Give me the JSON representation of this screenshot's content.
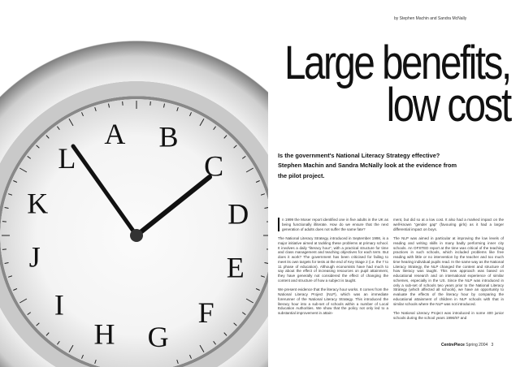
{
  "byline": "by Stephen Machin and Sandra McNally",
  "title": {
    "line1": "Large benefits,",
    "line2": "low cost"
  },
  "standfirst": "Is the government's National Literacy Strategy effective? Stephen Machin and Sandra McNally look at the evidence from the pilot project.",
  "clock": {
    "letters": [
      "A",
      "B",
      "C",
      "D",
      "E",
      "F",
      "G",
      "H",
      "I",
      "J",
      "K",
      "L"
    ]
  },
  "column1": [
    "n 1999 the Moser report identified one in five adults in the UK as being functionally illiterate. How do we ensure that the next generation of adults does not suffer the same fate?",
    "The National Literacy Strategy, introduced in September 1998, is a major initiative aimed at tackling these problems at primary school. It involves a daily “literacy hour”, with a practical structure for time and class management and teaching objectives for each term. But does it work? The government has been criticised for failing to meet its own targets for tests at the end of Key Stage 2 (i.e. the 7 to 11 phase of education). Although economists have had much to say about the effect of increasing resources on pupil attainment, they have generally not considered the effect of changing the content and structure of how a subject is taught.",
    "We present evidence that the literacy hour works. It comes from the National Literacy Project (NLP), which was an immediate forerunner of the National Literacy Strategy. This introduced the literacy hour into a sub-set of schools within a number of Local Education Authorities. We show that the policy not only led to a substantial improvement in attain-"
  ],
  "column2": [
    "ment, but did so at a low cost. It also had a marked impact on the well-known “gender gap” (favouring girls) as it had a larger differential impact on boys.",
    "The NLP was aimed in particular at improving the low levels of reading and writing skills in many badly performing inner city schools. An OFSTED report at the time was critical of the teaching practices in such schools, which included problems like free reading with little or no intervention by the teacher and too much time hearing individual pupils read. In the same way as the National Literacy Strategy, the NLP changed the content and structure of how literacy was taught. This new approach was based on educational research and on international experience of similar schemes, especially in the US. Since the NLP was introduced in only a sub-set of schools two years prior to the National Literacy Strategy (which affected all schools), we have an opportunity to evaluate the effects of the literacy hour by comparing the educational attainment of children in NLP schools with that in similar schools where the NLP was not introduced.",
    "The National Literacy Project was introduced in some 400 junior schools during the school years 1996/97 and"
  ],
  "footer": {
    "publication": "CentrePiece",
    "issue": "Spring 2004",
    "page": "3"
  }
}
